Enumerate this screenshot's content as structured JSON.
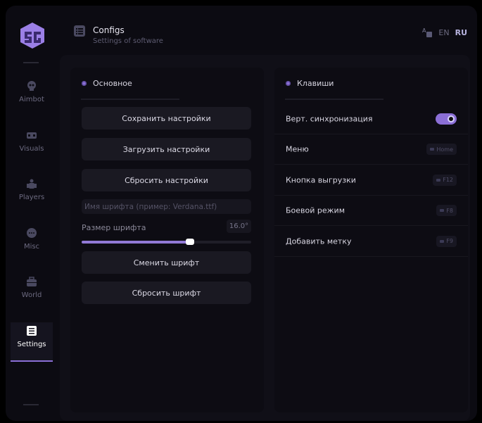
{
  "header": {
    "title": "Configs",
    "subtitle": "Settings of software",
    "lang": [
      "EN",
      "RU"
    ],
    "active_lang": "RU"
  },
  "sidebar": {
    "items": [
      {
        "label": "Aimbot",
        "icon": "skull-icon"
      },
      {
        "label": "Visuals",
        "icon": "vr-headset-icon"
      },
      {
        "label": "Players",
        "icon": "users-icon"
      },
      {
        "label": "Misc",
        "icon": "chat-icon"
      },
      {
        "label": "World",
        "icon": "briefcase-icon"
      },
      {
        "label": "Settings",
        "icon": "list-icon",
        "active": true
      }
    ]
  },
  "main": {
    "title": "Основное",
    "buttons": [
      "Сохранить настройки",
      "Загрузить настройки",
      "Сбросить настройки"
    ],
    "font_input": {
      "placeholder": "Имя шрифта (пример: Verdana.ttf)",
      "value": ""
    },
    "font_size": {
      "label": "Размер шрифта",
      "value": "16.0°",
      "fraction": 0.64
    },
    "font_buttons": [
      "Сменить шрифт",
      "Сбросить шрифт"
    ]
  },
  "keys": {
    "title": "Клавиши",
    "vsync": {
      "label": "Верт. синхронизация",
      "on": true
    },
    "binds": [
      {
        "label": "Меню",
        "key": "Home"
      },
      {
        "label": "Кнопка выгрузки",
        "key": "F12"
      },
      {
        "label": "Боевой режим",
        "key": "F8"
      },
      {
        "label": "Добавить метку",
        "key": "F9"
      }
    ]
  },
  "colors": {
    "accent": "#8b6fd6",
    "bg": "#0c0b12"
  }
}
